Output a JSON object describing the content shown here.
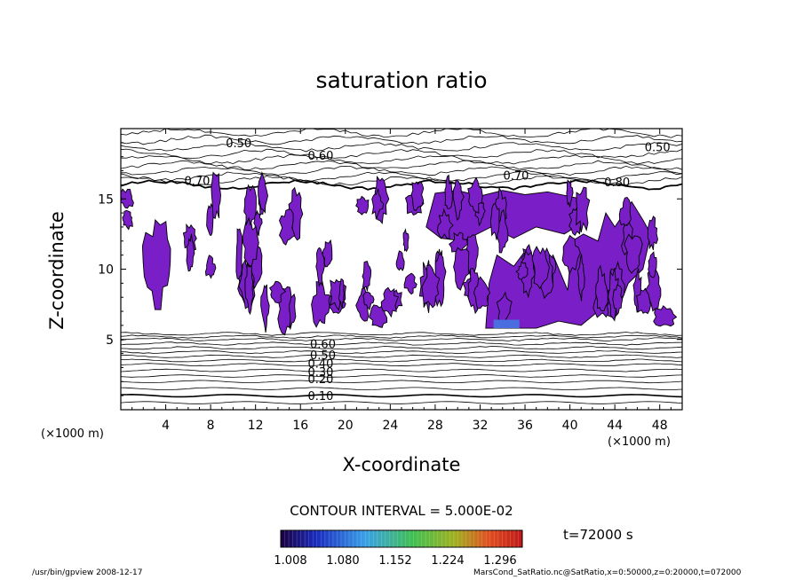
{
  "chart_data": {
    "type": "contour",
    "title": "saturation ratio",
    "xlabel": "X-coordinate",
    "ylabel": "Z-coordinate",
    "x_unit_left": "(×1000 m)",
    "x_unit_right": "(×1000 m)",
    "xlim": [
      0,
      50
    ],
    "ylim": [
      0,
      20
    ],
    "x_ticks": [
      4,
      8,
      12,
      16,
      20,
      24,
      28,
      32,
      36,
      40,
      44,
      48
    ],
    "y_ticks": [
      5,
      10,
      15
    ],
    "contour_labels": [
      {
        "text": "0.50",
        "x": 10.5,
        "z": 19.0
      },
      {
        "text": "0.60",
        "x": 17.8,
        "z": 18.1
      },
      {
        "text": "0.70",
        "x": 6.8,
        "z": 16.3
      },
      {
        "text": "0.70",
        "x": 35.2,
        "z": 16.7
      },
      {
        "text": "0.50",
        "x": 47.8,
        "z": 18.7
      },
      {
        "text": "0.80",
        "x": 44.2,
        "z": 16.2
      },
      {
        "text": "0.60",
        "x": 18.0,
        "z": 4.7
      },
      {
        "text": "0.50",
        "x": 18.0,
        "z": 3.9
      },
      {
        "text": "0.40",
        "x": 17.8,
        "z": 3.3
      },
      {
        "text": "0.30",
        "x": 17.8,
        "z": 2.7
      },
      {
        "text": "0.20",
        "x": 17.8,
        "z": 2.2
      },
      {
        "text": "0.10",
        "x": 17.8,
        "z": 1.0
      }
    ],
    "colorbar": {
      "ticks": [
        "1.008",
        "1.080",
        "1.152",
        "1.224",
        "1.296"
      ]
    },
    "contour_interval_text": "CONTOUR INTERVAL = 5.000E-02",
    "time_text": "t=72000  s",
    "footer_left": "/usr/bin/gpview   2008-12-17",
    "footer_right": "MarsCond_SatRatio.nc@SatRatio,x=0:50000,z=0:20000,t=072000",
    "colors": {
      "fill": "#7a1fc8",
      "fill_light": "#4a6ee0",
      "line": "#000000"
    }
  }
}
